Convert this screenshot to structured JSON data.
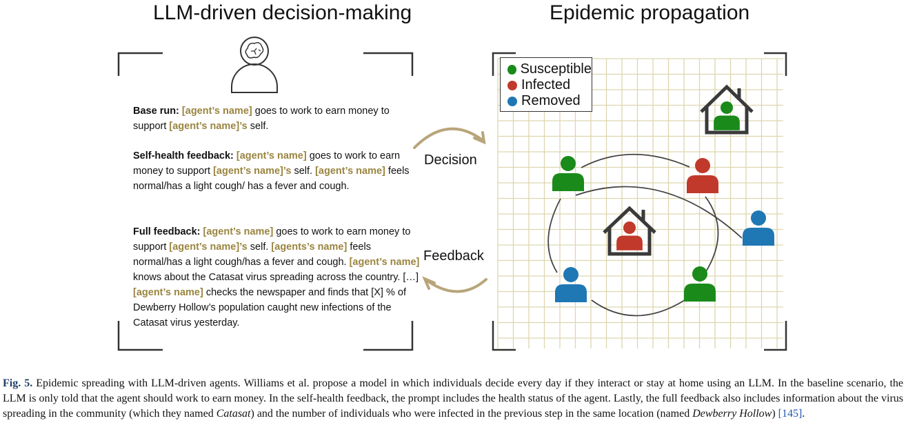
{
  "left_panel": {
    "title": "LLM-driven decision-making",
    "name_token": "[agent’s name]",
    "base_run": {
      "label": "Base run:",
      "s1": "goes to work to earn money to support",
      "token_possessive": "[agent’s name]’s",
      "s2": "self."
    },
    "self_health": {
      "label": "Self-health feedback:",
      "s1": "goes to work to earn money to support",
      "token_possessive": "[agent’s name]’s",
      "s2": "self.",
      "s3": "feels normal/has a light cough/ has a fever and cough."
    },
    "full_feedback": {
      "label": "Full feedback:",
      "s1": "goes to work to earn money to support",
      "token_possessive": "[agent’s name]’s",
      "s2": "self.",
      "token_plural": "[agents’s name]",
      "s3": "feels normal/has a light cough/has a fever and cough.",
      "s4": "knows about the Catasat virus spreading across the country. […]",
      "s5": "checks the newspaper and finds that [X] % of Dewberry Hollow’s population caught new infections of the Catasat virus yesterday."
    }
  },
  "right_panel": {
    "title": "Epidemic propagation",
    "legend": [
      {
        "label": "Susceptible",
        "color": "#1a8a1a"
      },
      {
        "label": "Infected",
        "color": "#c0392b"
      },
      {
        "label": "Removed",
        "color": "#1f77b4"
      }
    ]
  },
  "arrows": {
    "decision": "Decision",
    "feedback": "Feedback",
    "arrow_color": "#b8a57a"
  },
  "colors": {
    "susceptible": "#1a8a1a",
    "infected": "#c0392b",
    "removed": "#1f77b4",
    "house": "#3a3a3a",
    "grid": "#ddd6ae",
    "name_token": "#9a8540"
  },
  "icons": [
    "brain-person-icon",
    "house-icon",
    "person-icon",
    "curved-arrow-icon"
  ],
  "caption": {
    "fig_label": "Fig. 5.",
    "text1": "Epidemic spreading with LLM-driven agents. Williams et al. propose a model in which individuals decide every day if they interact or stay at home using an LLM. In the baseline scenario, the LLM is only told that the agent should work to earn money. In the self-health feedback, the prompt includes the health status of the agent. Lastly, the full feedback also includes information about the virus spreading in the community (which they named",
    "italic1": "Catasat",
    "text2": ") and the number of individuals who were infected in the previous step in the same location (named",
    "italic2": "Dewberry Hollow",
    "text3": ")",
    "citation": "[145]",
    "end": "."
  }
}
